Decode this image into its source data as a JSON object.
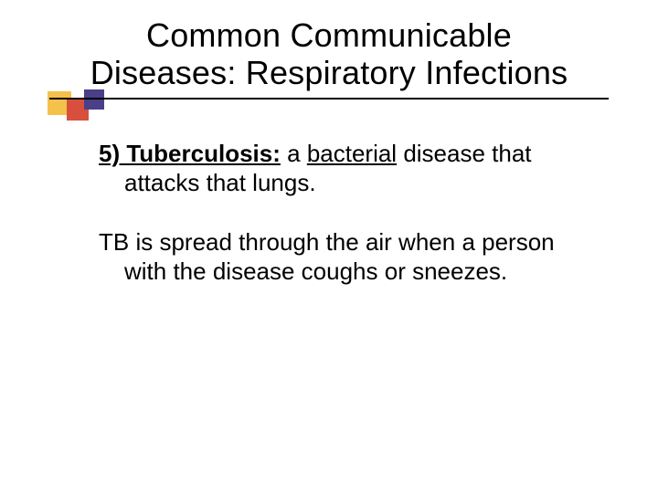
{
  "title_line1": "Common Communicable",
  "title_line2": "Diseases: Respiratory Infections",
  "colors": {
    "square_yellow": "#f4c14a",
    "square_red": "#d94f3d",
    "square_purple": "#4a3f88",
    "text": "#000000",
    "background": "#ffffff"
  },
  "body": {
    "item": {
      "number_label": "5) Tuberculosis:",
      "text_before": " a ",
      "underlined": "bacterial",
      "text_after": " disease that attacks that lungs."
    },
    "paragraph": "TB is spread through the air when a person with the disease coughs or sneezes."
  }
}
